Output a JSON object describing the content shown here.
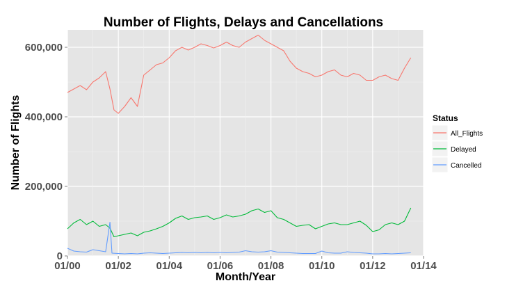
{
  "chart_data": {
    "type": "line",
    "title": "Number of Flights, Delays and Cancellations",
    "xlabel": "Month/Year",
    "ylabel": "Number of Flights",
    "xlim": [
      2000,
      2014
    ],
    "ylim": [
      0,
      650000
    ],
    "x_ticks": [
      {
        "value": 2000,
        "label": "01/00"
      },
      {
        "value": 2002,
        "label": "01/02"
      },
      {
        "value": 2004,
        "label": "01/04"
      },
      {
        "value": 2006,
        "label": "01/06"
      },
      {
        "value": 2008,
        "label": "01/08"
      },
      {
        "value": 2010,
        "label": "01/10"
      },
      {
        "value": 2012,
        "label": "01/12"
      },
      {
        "value": 2014,
        "label": "01/14"
      }
    ],
    "y_ticks": [
      {
        "value": 0,
        "label": "0"
      },
      {
        "value": 200000,
        "label": "200,000"
      },
      {
        "value": 400000,
        "label": "400,000"
      },
      {
        "value": 600000,
        "label": "600,000"
      }
    ],
    "grid": true,
    "background": "#e5e5e5",
    "legend": {
      "title": "Status",
      "placement": "right"
    },
    "series": [
      {
        "name": "All_Flights",
        "color": "#f8766d",
        "values": [
          [
            2000.0,
            470000
          ],
          [
            2000.25,
            480000
          ],
          [
            2000.5,
            490000
          ],
          [
            2000.75,
            478000
          ],
          [
            2001.0,
            500000
          ],
          [
            2001.25,
            512000
          ],
          [
            2001.5,
            530000
          ],
          [
            2001.67,
            480000
          ],
          [
            2001.83,
            420000
          ],
          [
            2002.0,
            410000
          ],
          [
            2002.25,
            430000
          ],
          [
            2002.5,
            455000
          ],
          [
            2002.75,
            430000
          ],
          [
            2003.0,
            520000
          ],
          [
            2003.25,
            535000
          ],
          [
            2003.5,
            550000
          ],
          [
            2003.75,
            555000
          ],
          [
            2004.0,
            570000
          ],
          [
            2004.25,
            590000
          ],
          [
            2004.5,
            600000
          ],
          [
            2004.75,
            592000
          ],
          [
            2005.0,
            600000
          ],
          [
            2005.25,
            610000
          ],
          [
            2005.5,
            605000
          ],
          [
            2005.75,
            598000
          ],
          [
            2006.0,
            605000
          ],
          [
            2006.25,
            615000
          ],
          [
            2006.5,
            605000
          ],
          [
            2006.75,
            600000
          ],
          [
            2007.0,
            615000
          ],
          [
            2007.25,
            625000
          ],
          [
            2007.5,
            635000
          ],
          [
            2007.75,
            620000
          ],
          [
            2008.0,
            610000
          ],
          [
            2008.25,
            600000
          ],
          [
            2008.5,
            590000
          ],
          [
            2008.75,
            560000
          ],
          [
            2009.0,
            540000
          ],
          [
            2009.25,
            530000
          ],
          [
            2009.5,
            525000
          ],
          [
            2009.75,
            515000
          ],
          [
            2010.0,
            520000
          ],
          [
            2010.25,
            530000
          ],
          [
            2010.5,
            535000
          ],
          [
            2010.75,
            520000
          ],
          [
            2011.0,
            515000
          ],
          [
            2011.25,
            525000
          ],
          [
            2011.5,
            520000
          ],
          [
            2011.75,
            505000
          ],
          [
            2012.0,
            505000
          ],
          [
            2012.25,
            515000
          ],
          [
            2012.5,
            520000
          ],
          [
            2012.75,
            510000
          ],
          [
            2013.0,
            505000
          ],
          [
            2013.25,
            540000
          ],
          [
            2013.5,
            570000
          ]
        ]
      },
      {
        "name": "Delayed",
        "color": "#00ba38",
        "values": [
          [
            2000.0,
            78000
          ],
          [
            2000.25,
            95000
          ],
          [
            2000.5,
            105000
          ],
          [
            2000.75,
            90000
          ],
          [
            2001.0,
            100000
          ],
          [
            2001.25,
            85000
          ],
          [
            2001.5,
            90000
          ],
          [
            2001.67,
            80000
          ],
          [
            2001.83,
            55000
          ],
          [
            2002.0,
            58000
          ],
          [
            2002.25,
            62000
          ],
          [
            2002.5,
            66000
          ],
          [
            2002.75,
            58000
          ],
          [
            2003.0,
            68000
          ],
          [
            2003.25,
            72000
          ],
          [
            2003.5,
            78000
          ],
          [
            2003.75,
            85000
          ],
          [
            2004.0,
            95000
          ],
          [
            2004.25,
            108000
          ],
          [
            2004.5,
            115000
          ],
          [
            2004.75,
            105000
          ],
          [
            2005.0,
            110000
          ],
          [
            2005.25,
            112000
          ],
          [
            2005.5,
            115000
          ],
          [
            2005.75,
            105000
          ],
          [
            2006.0,
            110000
          ],
          [
            2006.25,
            118000
          ],
          [
            2006.5,
            112000
          ],
          [
            2006.75,
            115000
          ],
          [
            2007.0,
            120000
          ],
          [
            2007.25,
            130000
          ],
          [
            2007.5,
            135000
          ],
          [
            2007.75,
            125000
          ],
          [
            2008.0,
            130000
          ],
          [
            2008.25,
            110000
          ],
          [
            2008.5,
            105000
          ],
          [
            2008.75,
            95000
          ],
          [
            2009.0,
            85000
          ],
          [
            2009.25,
            88000
          ],
          [
            2009.5,
            90000
          ],
          [
            2009.75,
            78000
          ],
          [
            2010.0,
            85000
          ],
          [
            2010.25,
            92000
          ],
          [
            2010.5,
            95000
          ],
          [
            2010.75,
            90000
          ],
          [
            2011.0,
            90000
          ],
          [
            2011.25,
            95000
          ],
          [
            2011.5,
            100000
          ],
          [
            2011.75,
            88000
          ],
          [
            2012.0,
            70000
          ],
          [
            2012.25,
            75000
          ],
          [
            2012.5,
            90000
          ],
          [
            2012.75,
            95000
          ],
          [
            2013.0,
            90000
          ],
          [
            2013.25,
            100000
          ],
          [
            2013.5,
            138000
          ]
        ]
      },
      {
        "name": "Cancelled",
        "color": "#619cff",
        "values": [
          [
            2000.0,
            22000
          ],
          [
            2000.25,
            14000
          ],
          [
            2000.5,
            12000
          ],
          [
            2000.75,
            11000
          ],
          [
            2001.0,
            18000
          ],
          [
            2001.25,
            15000
          ],
          [
            2001.5,
            12000
          ],
          [
            2001.67,
            97000
          ],
          [
            2001.75,
            8000
          ],
          [
            2002.0,
            7000
          ],
          [
            2002.25,
            6000
          ],
          [
            2002.5,
            7000
          ],
          [
            2002.75,
            6000
          ],
          [
            2003.0,
            8000
          ],
          [
            2003.25,
            9000
          ],
          [
            2003.5,
            8000
          ],
          [
            2003.75,
            7000
          ],
          [
            2004.0,
            8000
          ],
          [
            2004.25,
            9000
          ],
          [
            2004.5,
            10000
          ],
          [
            2004.75,
            9000
          ],
          [
            2005.0,
            10000
          ],
          [
            2005.25,
            9000
          ],
          [
            2005.5,
            10000
          ],
          [
            2005.75,
            9000
          ],
          [
            2006.0,
            10000
          ],
          [
            2006.25,
            9000
          ],
          [
            2006.5,
            10000
          ],
          [
            2006.75,
            11000
          ],
          [
            2007.0,
            15000
          ],
          [
            2007.25,
            12000
          ],
          [
            2007.5,
            11000
          ],
          [
            2007.75,
            12000
          ],
          [
            2008.0,
            15000
          ],
          [
            2008.25,
            11000
          ],
          [
            2008.5,
            10000
          ],
          [
            2008.75,
            9000
          ],
          [
            2009.0,
            8000
          ],
          [
            2009.25,
            7000
          ],
          [
            2009.5,
            7000
          ],
          [
            2009.75,
            7000
          ],
          [
            2010.0,
            14000
          ],
          [
            2010.25,
            9000
          ],
          [
            2010.5,
            8000
          ],
          [
            2010.75,
            8000
          ],
          [
            2011.0,
            12000
          ],
          [
            2011.25,
            10000
          ],
          [
            2011.5,
            9000
          ],
          [
            2011.75,
            8000
          ],
          [
            2012.0,
            6000
          ],
          [
            2012.25,
            6000
          ],
          [
            2012.5,
            7000
          ],
          [
            2012.75,
            6000
          ],
          [
            2013.0,
            7000
          ],
          [
            2013.25,
            8000
          ],
          [
            2013.5,
            9000
          ]
        ]
      }
    ]
  }
}
